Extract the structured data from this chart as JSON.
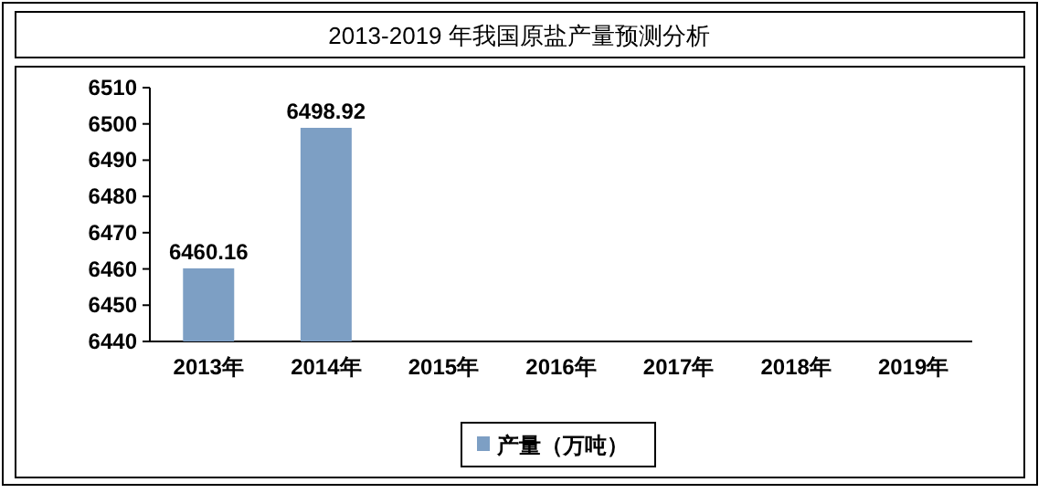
{
  "chart_data": {
    "type": "bar",
    "title": "2013-2019 年我国原盐产量预测分析",
    "categories": [
      "2013年",
      "2014年",
      "2015年",
      "2016年",
      "2017年",
      "2018年",
      "2019年"
    ],
    "series": [
      {
        "name": "产量（万吨）",
        "color": "#7d9fc4",
        "values": [
          6460.16,
          6498.92,
          null,
          null,
          null,
          null,
          null
        ]
      }
    ],
    "ylim": [
      6440,
      6510
    ],
    "yticks": [
      6440,
      6450,
      6460,
      6470,
      6480,
      6490,
      6500,
      6510
    ],
    "data_labels": true,
    "legend": "bottom",
    "grid": false
  }
}
